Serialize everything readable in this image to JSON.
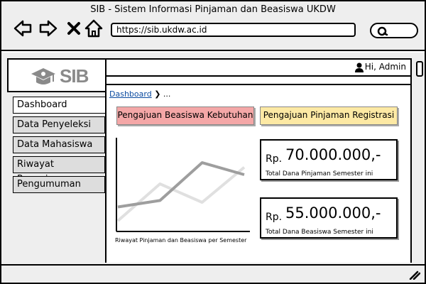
{
  "browser": {
    "title": "SIB - Sistem Informasi Pinjaman dan Beasiswa UKDW",
    "url": "https://sib.ukdw.ac.id",
    "icons": {
      "back": "arrow-left-icon",
      "forward": "arrow-right-icon",
      "close": "close-icon",
      "home": "home-icon",
      "search": "search-icon",
      "resize": "resize-grip-icon"
    }
  },
  "logo": {
    "text": "SIB",
    "icon": "graduation-cap-icon"
  },
  "user": {
    "label": "Hi, Admin",
    "icon": "user-icon"
  },
  "sidebar": {
    "items": [
      {
        "label": "Dashboard",
        "active": true
      },
      {
        "label": "Data Penyeleksi",
        "active": false
      },
      {
        "label": "Data Mahasiswa",
        "active": false
      },
      {
        "label": "Riwayat Pengajuan",
        "active": false
      },
      {
        "label": "Pengumuman",
        "active": false
      }
    ]
  },
  "breadcrumb": {
    "link": "Dashboard",
    "separator": "❯",
    "rest": "..."
  },
  "buttons": {
    "beasiswa": {
      "label": "Pengajuan Beasiswa Kebutuhan",
      "color": "#f4a7a7"
    },
    "pinjaman": {
      "label": "Pengajuan Pinjaman Registrasi",
      "color": "#fde9a4"
    }
  },
  "chart": {
    "caption": "Riwayat Pinjaman dan Beasiswa per Semester"
  },
  "chart_data": {
    "type": "line",
    "x": [
      1,
      2,
      3,
      4
    ],
    "series": [
      {
        "values": [
          25,
          32,
          73,
          60
        ],
        "color": "#9e9e9e"
      },
      {
        "values": [
          10,
          50,
          30,
          68
        ],
        "color": "#e0e0e0"
      }
    ],
    "xlim": [
      1,
      4
    ],
    "ylim": [
      0,
      100
    ],
    "grid": false,
    "legend": "none"
  },
  "stats": [
    {
      "prefix": "Rp.",
      "value": "70.000.000,-",
      "label": "Total Dana Pinjaman Semester ini"
    },
    {
      "prefix": "Rp.",
      "value": "55.000.000,-",
      "label": "Total Dana Beasiswa Semester ini"
    }
  ]
}
